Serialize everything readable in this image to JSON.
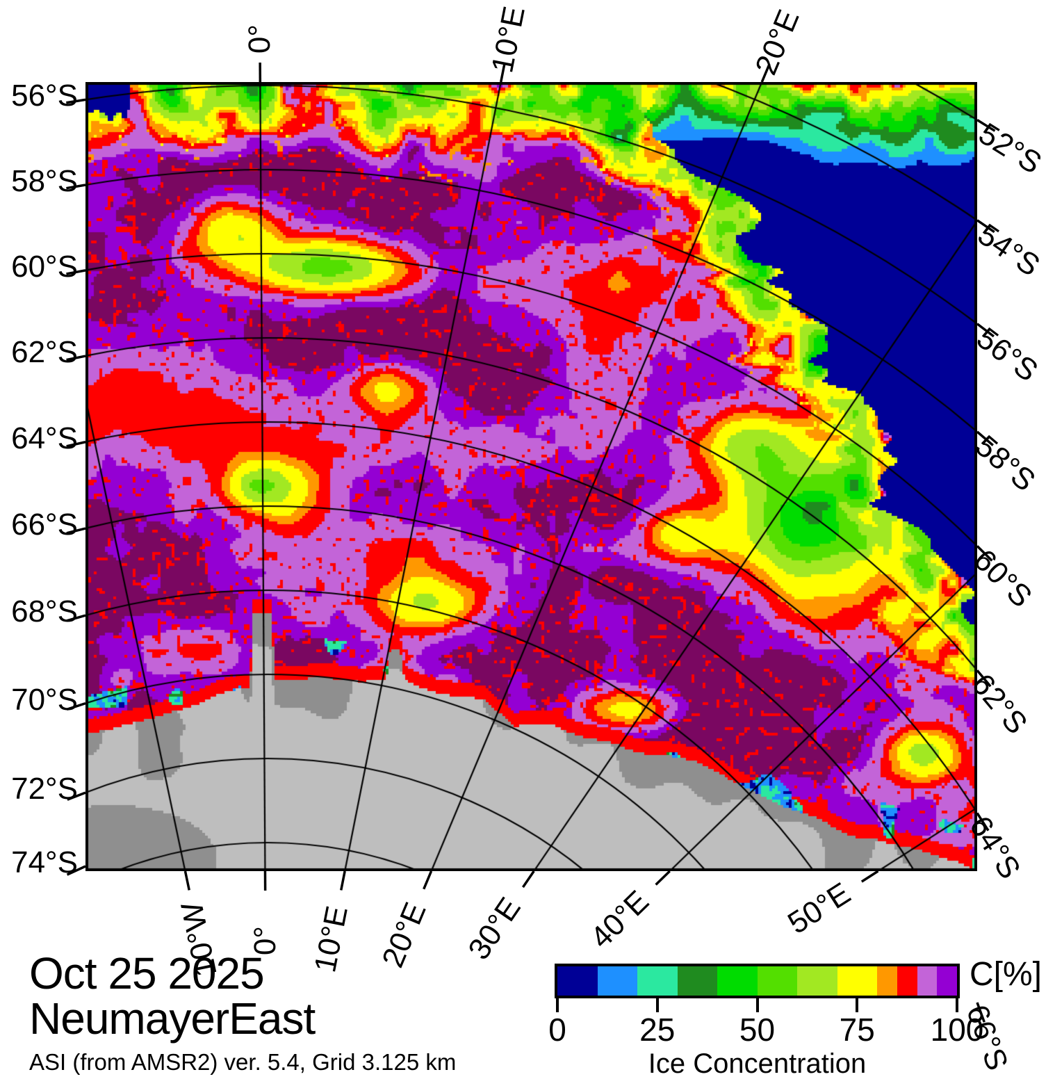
{
  "title_block": {
    "date": "Oct 25 2025",
    "region": "NeumayerEast",
    "source_line": "ASI (from AMSR2) ver. 5.4,  Grid 3.125 km"
  },
  "axes": {
    "left_latitude_labels": [
      "56°S",
      "58°S",
      "60°S",
      "62°S",
      "64°S",
      "66°S",
      "68°S",
      "70°S",
      "72°S",
      "74°S"
    ],
    "right_latitude_labels": [
      "52°S",
      "54°S",
      "56°S",
      "58°S",
      "60°S",
      "62°S",
      "64°S",
      "66°S"
    ],
    "top_longitude_labels": [
      "0°",
      "10°E",
      "20°E"
    ],
    "bottom_longitude_labels": [
      "10°W",
      "0°",
      "10°E",
      "20°E",
      "30°E",
      "40°E",
      "50°E"
    ]
  },
  "colorbar": {
    "unit_label": "C[%]",
    "axis_title": "Ice Concentration",
    "tick_labels": [
      "0",
      "25",
      "50",
      "75",
      "100"
    ],
    "tick_values": [
      0,
      25,
      50,
      75,
      100
    ],
    "segments": [
      {
        "from": 0,
        "to": 10,
        "color": "#000096"
      },
      {
        "from": 10,
        "to": 20,
        "color": "#1E90FF"
      },
      {
        "from": 20,
        "to": 30,
        "color": "#2BE8A0"
      },
      {
        "from": 30,
        "to": 40,
        "color": "#1F8B1F"
      },
      {
        "from": 40,
        "to": 50,
        "color": "#00DC00"
      },
      {
        "from": 50,
        "to": 60,
        "color": "#53DF00"
      },
      {
        "from": 60,
        "to": 70,
        "color": "#A2E822"
      },
      {
        "from": 70,
        "to": 80,
        "color": "#FFFF00"
      },
      {
        "from": 80,
        "to": 85,
        "color": "#FF9800"
      },
      {
        "from": 85,
        "to": 90,
        "color": "#FF0000"
      },
      {
        "from": 90,
        "to": 95,
        "color": "#C364D8"
      },
      {
        "from": 95,
        "to": 100,
        "color": "#9400D3"
      }
    ]
  },
  "map": {
    "ocean_color": "#000096",
    "land_color": "#BEBEBE",
    "land_patch_color": "#8F8F8F",
    "grid_color": "#000000",
    "max_concentration_color": "#7A0761",
    "description": "Sea-ice concentration map, NeumayerEast sector (Antarctica), pack ice with coastal polynyas, open ocean at upper right, ice sheet (land) at bottom"
  },
  "chart_data": {
    "type": "heatmap",
    "variable": "Ice Concentration C[%]",
    "scale_range": [
      0,
      100
    ],
    "scale_ticks": [
      0,
      25,
      50,
      75,
      100
    ],
    "legend_position": "bottom-right",
    "graticule": {
      "latitudes_deg_south": [
        52,
        54,
        56,
        58,
        60,
        62,
        64,
        66,
        68,
        70,
        72,
        74
      ],
      "longitudes_deg": [
        -10,
        0,
        10,
        20,
        30,
        40,
        50
      ]
    }
  }
}
